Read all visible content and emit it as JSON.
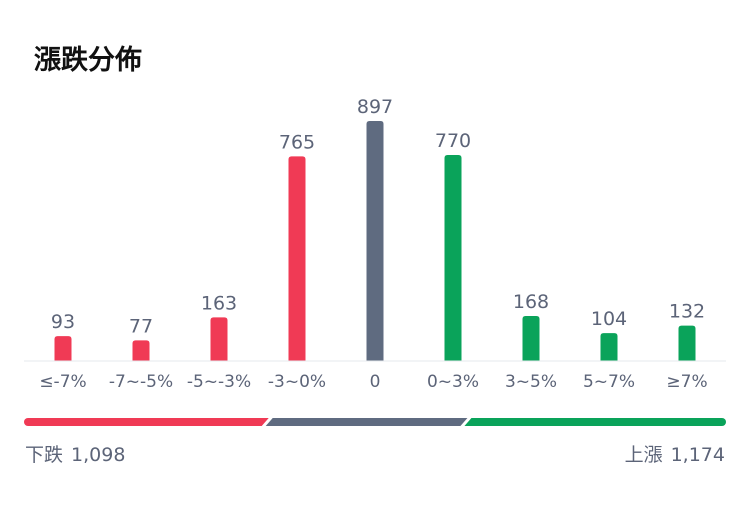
{
  "header": {
    "title": "漲跌分佈"
  },
  "colors": {
    "down": "#f03a55",
    "flat": "#5f6b80",
    "up": "#0aa35a",
    "axis": "#e6e8ec",
    "text": "#5c6478"
  },
  "chart_data": {
    "type": "bar",
    "categories": [
      "≤-7%",
      "-7~-5%",
      "-5~-3%",
      "-3~0%",
      "0",
      "0~3%",
      "3~5%",
      "5~7%",
      "≥7%"
    ],
    "values": [
      93,
      77,
      163,
      765,
      897,
      770,
      168,
      104,
      132
    ],
    "groups": [
      "down",
      "down",
      "down",
      "down",
      "flat",
      "up",
      "up",
      "up",
      "up"
    ],
    "ylim": [
      0,
      897
    ],
    "grid": false,
    "title": "漲跌分佈"
  },
  "summary": {
    "down_label": "下跌",
    "down_total": "1,098",
    "up_label": "上漲",
    "up_total": "1,174",
    "flat_total": 897
  }
}
